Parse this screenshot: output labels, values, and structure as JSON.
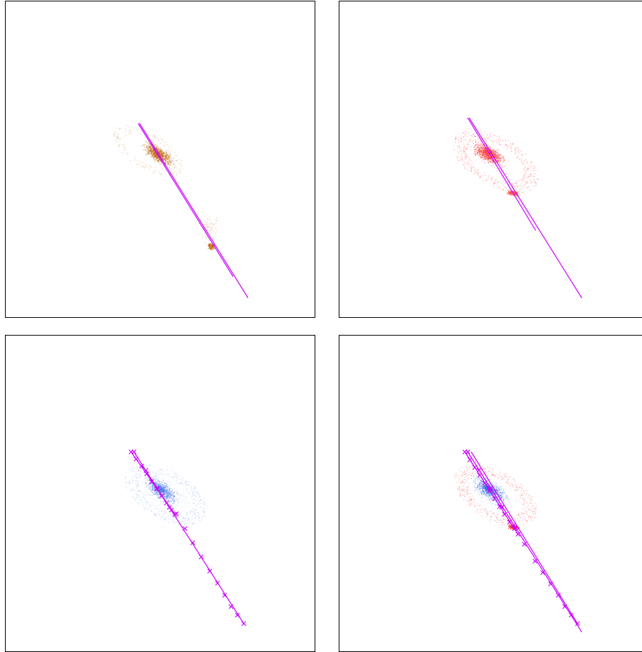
{
  "figure": {
    "panels": [
      {
        "id": "p1",
        "name": "panel-stars-and-gas",
        "particle_colors": [
          "#b5651d",
          "#d98c3a"
        ],
        "trajectory_color": "#cc00ff"
      },
      {
        "id": "p2",
        "name": "panel-gas",
        "particle_colors": [
          "#ff2a2a",
          "#ff7070"
        ],
        "trajectory_color": "#cc00ff"
      },
      {
        "id": "p3",
        "name": "panel-stars",
        "particle_colors": [
          "#3b6fe0",
          "#7f9ef0"
        ],
        "trajectory_color": "#cc00ff"
      },
      {
        "id": "p4",
        "name": "panel-overlay",
        "particle_colors": [
          "#3b6fe0",
          "#ff2a2a"
        ],
        "trajectory_color": "#cc00ff"
      }
    ]
  }
}
